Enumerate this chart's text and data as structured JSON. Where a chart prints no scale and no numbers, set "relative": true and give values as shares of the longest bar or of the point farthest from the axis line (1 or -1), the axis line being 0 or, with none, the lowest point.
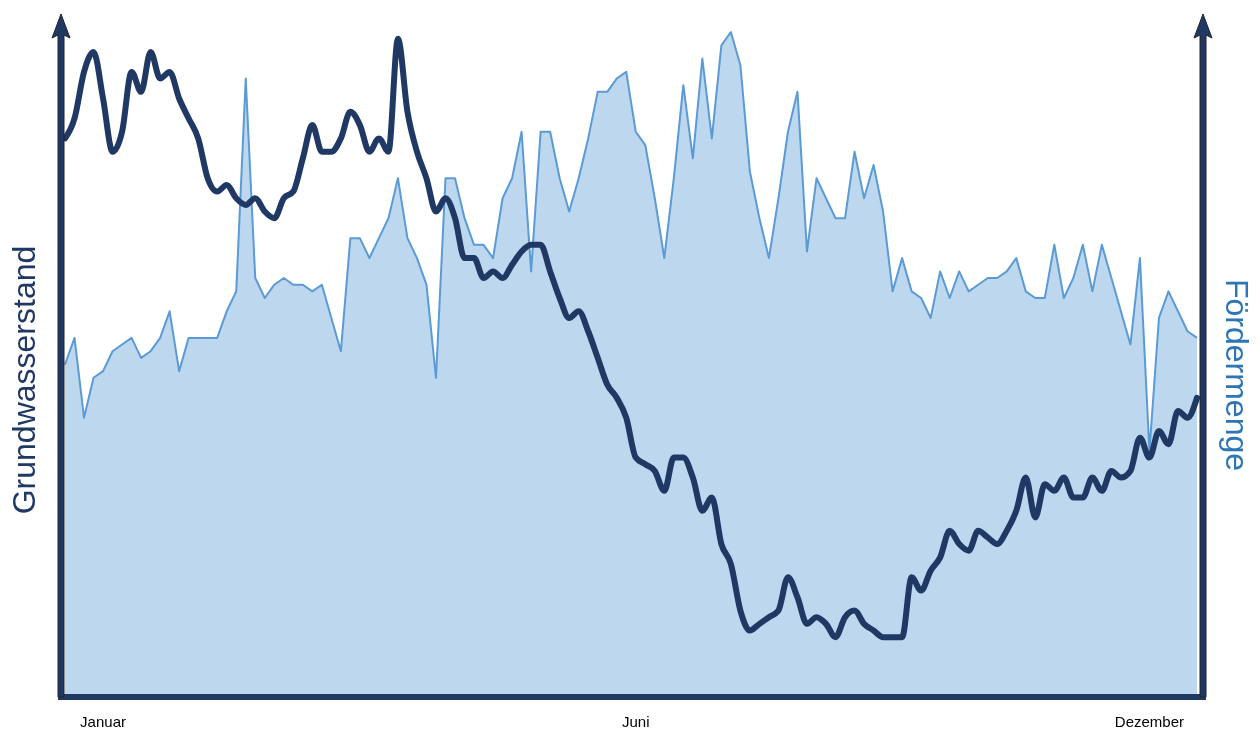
{
  "chart_data": {
    "type": "line",
    "relative": true,
    "ylabel": "Grundwasserstand",
    "y2label": "Fördermenge",
    "categories": [
      null,
      null,
      null,
      null,
      "Januar",
      null,
      null,
      null,
      null,
      null,
      null,
      null,
      null,
      null,
      null,
      null,
      null,
      null,
      null,
      null,
      null,
      null,
      null,
      null,
      null,
      null,
      null,
      null,
      null,
      null,
      null,
      null,
      null,
      null,
      null,
      null,
      null,
      null,
      null,
      null,
      null,
      null,
      null,
      null,
      null,
      null,
      null,
      null,
      null,
      null,
      null,
      null,
      null,
      null,
      null,
      null,
      null,
      null,
      null,
      null,
      "Juni",
      null,
      null,
      null,
      null,
      null,
      null,
      null,
      null,
      null,
      null,
      null,
      null,
      null,
      null,
      null,
      null,
      null,
      null,
      null,
      null,
      null,
      null,
      null,
      null,
      null,
      null,
      null,
      null,
      null,
      null,
      null,
      null,
      null,
      null,
      null,
      null,
      null,
      null,
      null,
      null,
      null,
      null,
      null,
      null,
      null,
      null,
      null,
      null,
      null,
      null,
      null,
      null,
      null,
      "Dezember",
      null,
      null,
      null,
      null,
      null
    ],
    "series": [
      {
        "type": "area",
        "color": "#5b9bd5",
        "values": [
          0.5,
          0.54,
          0.42,
          0.48,
          0.49,
          0.52,
          0.53,
          0.54,
          0.51,
          0.52,
          0.54,
          0.58,
          0.49,
          0.54,
          0.54,
          0.54,
          0.54,
          0.58,
          0.61,
          0.93,
          0.63,
          0.6,
          0.62,
          0.63,
          0.62,
          0.62,
          0.61,
          0.62,
          0.57,
          0.52,
          0.69,
          0.69,
          0.66,
          0.69,
          0.72,
          0.78,
          0.69,
          0.66,
          0.62,
          0.48,
          0.78,
          0.78,
          0.72,
          0.68,
          0.68,
          0.66,
          0.75,
          0.78,
          0.85,
          0.64,
          0.85,
          0.85,
          0.78,
          0.73,
          0.78,
          0.84,
          0.91,
          0.91,
          0.93,
          0.94,
          0.85,
          0.83,
          0.75,
          0.66,
          0.78,
          0.92,
          0.81,
          0.96,
          0.84,
          0.98,
          1.0,
          0.95,
          0.79,
          0.72,
          0.66,
          0.75,
          0.85,
          0.91,
          0.67,
          0.78,
          0.75,
          0.72,
          0.72,
          0.82,
          0.75,
          0.8,
          0.73,
          0.61,
          0.66,
          0.61,
          0.6,
          0.57,
          0.64,
          0.6,
          0.64,
          0.61,
          0.62,
          0.63,
          0.63,
          0.64,
          0.66,
          0.61,
          0.6,
          0.6,
          0.68,
          0.6,
          0.63,
          0.68,
          0.61,
          0.68,
          0.63,
          0.58,
          0.53,
          0.66,
          0.37,
          0.57,
          0.61,
          0.58,
          0.55,
          0.54
        ]
      },
      {
        "type": "line",
        "color": "#1f3864",
        "values": [
          0.84,
          0.87,
          0.94,
          0.97,
          0.9,
          0.82,
          0.85,
          0.94,
          0.91,
          0.97,
          0.93,
          0.94,
          0.9,
          0.87,
          0.84,
          0.78,
          0.76,
          0.77,
          0.75,
          0.74,
          0.75,
          0.73,
          0.72,
          0.75,
          0.76,
          0.81,
          0.86,
          0.82,
          0.82,
          0.84,
          0.88,
          0.86,
          0.82,
          0.84,
          0.82,
          0.99,
          0.88,
          0.82,
          0.78,
          0.73,
          0.75,
          0.72,
          0.66,
          0.66,
          0.63,
          0.64,
          0.63,
          0.65,
          0.67,
          0.68,
          0.68,
          0.64,
          0.6,
          0.57,
          0.58,
          0.55,
          0.51,
          0.47,
          0.45,
          0.42,
          0.36,
          0.35,
          0.34,
          0.31,
          0.36,
          0.36,
          0.33,
          0.28,
          0.3,
          0.23,
          0.2,
          0.13,
          0.1,
          0.11,
          0.12,
          0.13,
          0.18,
          0.15,
          0.11,
          0.12,
          0.11,
          0.09,
          0.12,
          0.13,
          0.11,
          0.1,
          0.09,
          0.09,
          0.09,
          0.18,
          0.16,
          0.19,
          0.21,
          0.25,
          0.23,
          0.22,
          0.25,
          0.24,
          0.23,
          0.25,
          0.28,
          0.33,
          0.27,
          0.32,
          0.31,
          0.33,
          0.3,
          0.3,
          0.33,
          0.31,
          0.34,
          0.33,
          0.34,
          0.39,
          0.36,
          0.4,
          0.38,
          0.43,
          0.42,
          0.45
        ]
      }
    ]
  }
}
